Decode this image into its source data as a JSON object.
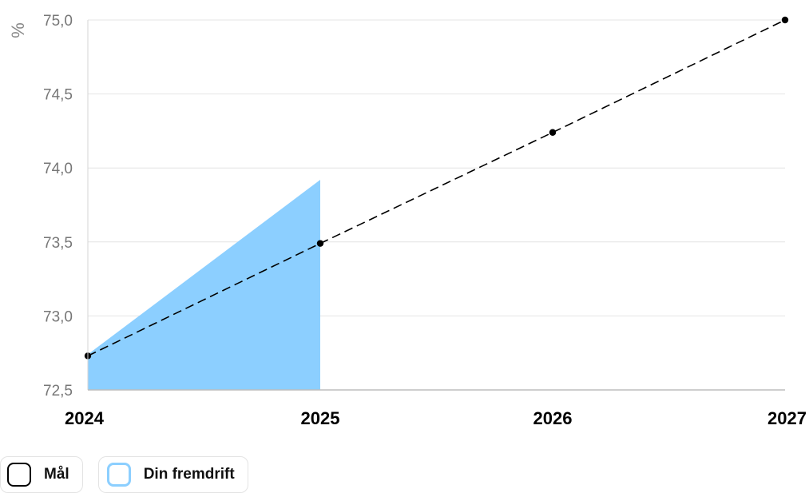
{
  "chart_data": {
    "type": "line",
    "unit_label": "%",
    "x": [
      2024,
      2025,
      2026,
      2027
    ],
    "x_tick_labels": [
      "2024",
      "2025",
      "2026",
      "2027"
    ],
    "ylim": [
      72.5,
      75.0
    ],
    "y_ticks": [
      72.5,
      73.0,
      73.5,
      74.0,
      74.5,
      75.0
    ],
    "y_tick_labels": [
      "72,5",
      "73,0",
      "73,5",
      "74,0",
      "74,5",
      "75,0"
    ],
    "grid": true,
    "legend_position": "bottom-left",
    "series": [
      {
        "name": "Mål",
        "style": "dashed-line-with-markers",
        "color": "#000000",
        "x": [
          2024,
          2025,
          2026,
          2027
        ],
        "values": [
          72.73,
          73.49,
          74.24,
          75.0
        ]
      },
      {
        "name": "Din fremdrift",
        "style": "area",
        "color": "#8ccfff",
        "x": [
          2024,
          2025
        ],
        "values": [
          72.74,
          73.92
        ]
      }
    ]
  },
  "legend": {
    "items": [
      {
        "label": "Mål",
        "swatch_fill": "#ffffff",
        "swatch_border": "#000000"
      },
      {
        "label": "Din fremdrift",
        "swatch_fill": "#ffffff",
        "swatch_border": "#8ccfff"
      }
    ]
  }
}
